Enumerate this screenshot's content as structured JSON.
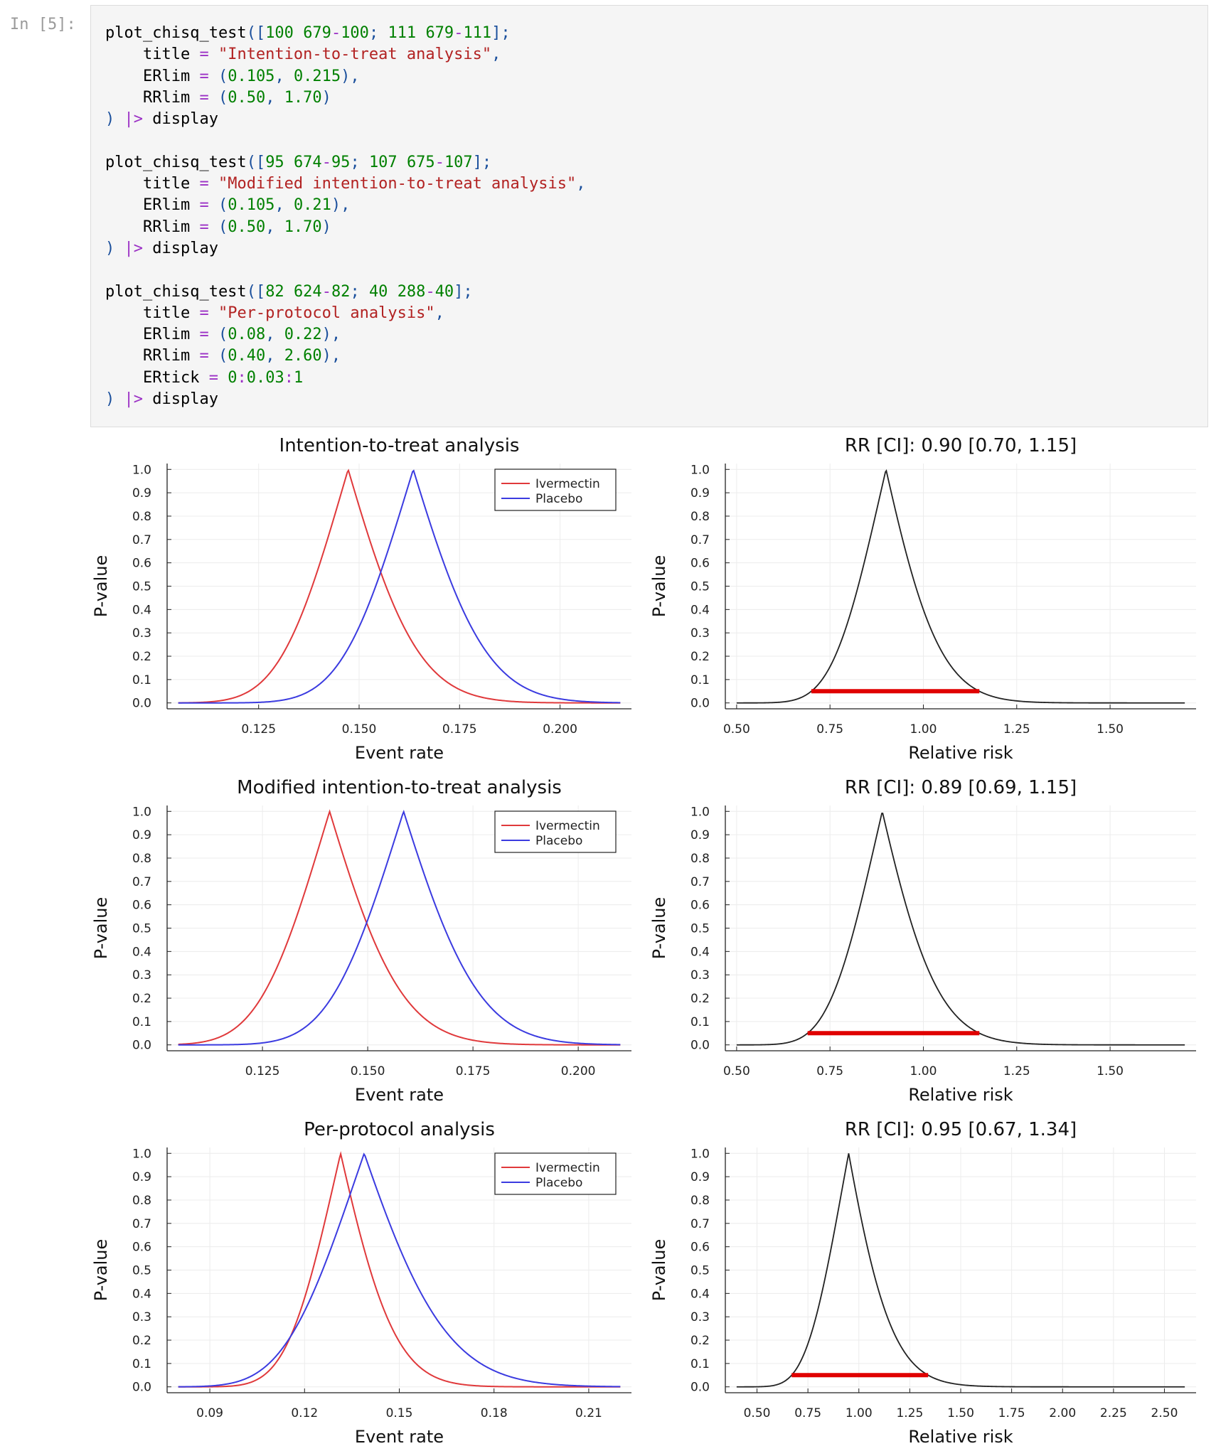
{
  "prompt": "In [5]:",
  "code_lines": [
    [
      [
        "id",
        "plot_chisq_test"
      ],
      [
        "pun",
        "(["
      ],
      [
        "num",
        "100"
      ],
      [
        "id",
        " "
      ],
      [
        "num",
        "679"
      ],
      [
        "op",
        "-"
      ],
      [
        "num",
        "100"
      ],
      [
        "pun",
        ";"
      ],
      [
        "id",
        " "
      ],
      [
        "num",
        "111"
      ],
      [
        "id",
        " "
      ],
      [
        "num",
        "679"
      ],
      [
        "op",
        "-"
      ],
      [
        "num",
        "111"
      ],
      [
        "pun",
        "];"
      ]
    ],
    [
      [
        "id",
        "    title "
      ],
      [
        "op",
        "="
      ],
      [
        "id",
        " "
      ],
      [
        "str",
        "\"Intention-to-treat analysis\""
      ],
      [
        "pun",
        ","
      ]
    ],
    [
      [
        "id",
        "    ERlim "
      ],
      [
        "op",
        "="
      ],
      [
        "id",
        " "
      ],
      [
        "pun",
        "("
      ],
      [
        "num",
        "0.105"
      ],
      [
        "pun",
        ","
      ],
      [
        "id",
        " "
      ],
      [
        "num",
        "0.215"
      ],
      [
        "pun",
        "),"
      ]
    ],
    [
      [
        "id",
        "    RRlim "
      ],
      [
        "op",
        "="
      ],
      [
        "id",
        " "
      ],
      [
        "pun",
        "("
      ],
      [
        "num",
        "0.50"
      ],
      [
        "pun",
        ","
      ],
      [
        "id",
        " "
      ],
      [
        "num",
        "1.70"
      ],
      [
        "pun",
        ")"
      ]
    ],
    [
      [
        "pun",
        ")"
      ],
      [
        "id",
        " "
      ],
      [
        "op",
        "|>"
      ],
      [
        "id",
        " display"
      ]
    ],
    [],
    [
      [
        "id",
        "plot_chisq_test"
      ],
      [
        "pun",
        "(["
      ],
      [
        "num",
        "95"
      ],
      [
        "id",
        " "
      ],
      [
        "num",
        "674"
      ],
      [
        "op",
        "-"
      ],
      [
        "num",
        "95"
      ],
      [
        "pun",
        ";"
      ],
      [
        "id",
        " "
      ],
      [
        "num",
        "107"
      ],
      [
        "id",
        " "
      ],
      [
        "num",
        "675"
      ],
      [
        "op",
        "-"
      ],
      [
        "num",
        "107"
      ],
      [
        "pun",
        "];"
      ]
    ],
    [
      [
        "id",
        "    title "
      ],
      [
        "op",
        "="
      ],
      [
        "id",
        " "
      ],
      [
        "str",
        "\"Modified intention-to-treat analysis\""
      ],
      [
        "pun",
        ","
      ]
    ],
    [
      [
        "id",
        "    ERlim "
      ],
      [
        "op",
        "="
      ],
      [
        "id",
        " "
      ],
      [
        "pun",
        "("
      ],
      [
        "num",
        "0.105"
      ],
      [
        "pun",
        ","
      ],
      [
        "id",
        " "
      ],
      [
        "num",
        "0.21"
      ],
      [
        "pun",
        "),"
      ]
    ],
    [
      [
        "id",
        "    RRlim "
      ],
      [
        "op",
        "="
      ],
      [
        "id",
        " "
      ],
      [
        "pun",
        "("
      ],
      [
        "num",
        "0.50"
      ],
      [
        "pun",
        ","
      ],
      [
        "id",
        " "
      ],
      [
        "num",
        "1.70"
      ],
      [
        "pun",
        ")"
      ]
    ],
    [
      [
        "pun",
        ")"
      ],
      [
        "id",
        " "
      ],
      [
        "op",
        "|>"
      ],
      [
        "id",
        " display"
      ]
    ],
    [],
    [
      [
        "id",
        "plot_chisq_test"
      ],
      [
        "pun",
        "(["
      ],
      [
        "num",
        "82"
      ],
      [
        "id",
        " "
      ],
      [
        "num",
        "624"
      ],
      [
        "op",
        "-"
      ],
      [
        "num",
        "82"
      ],
      [
        "pun",
        ";"
      ],
      [
        "id",
        " "
      ],
      [
        "num",
        "40"
      ],
      [
        "id",
        " "
      ],
      [
        "num",
        "288"
      ],
      [
        "op",
        "-"
      ],
      [
        "num",
        "40"
      ],
      [
        "pun",
        "];"
      ]
    ],
    [
      [
        "id",
        "    title "
      ],
      [
        "op",
        "="
      ],
      [
        "id",
        " "
      ],
      [
        "str",
        "\"Per-protocol analysis\""
      ],
      [
        "pun",
        ","
      ]
    ],
    [
      [
        "id",
        "    ERlim "
      ],
      [
        "op",
        "="
      ],
      [
        "id",
        " "
      ],
      [
        "pun",
        "("
      ],
      [
        "num",
        "0.08"
      ],
      [
        "pun",
        ","
      ],
      [
        "id",
        " "
      ],
      [
        "num",
        "0.22"
      ],
      [
        "pun",
        "),"
      ]
    ],
    [
      [
        "id",
        "    RRlim "
      ],
      [
        "op",
        "="
      ],
      [
        "id",
        " "
      ],
      [
        "pun",
        "("
      ],
      [
        "num",
        "0.40"
      ],
      [
        "pun",
        ","
      ],
      [
        "id",
        " "
      ],
      [
        "num",
        "2.60"
      ],
      [
        "pun",
        "),"
      ]
    ],
    [
      [
        "id",
        "    ERtick "
      ],
      [
        "op",
        "="
      ],
      [
        "id",
        " "
      ],
      [
        "num",
        "0"
      ],
      [
        "op",
        ":"
      ],
      [
        "num",
        "0.03"
      ],
      [
        "op",
        ":"
      ],
      [
        "num",
        "1"
      ]
    ],
    [
      [
        "pun",
        ")"
      ],
      [
        "id",
        " "
      ],
      [
        "op",
        "|>"
      ],
      [
        "id",
        " display"
      ]
    ]
  ],
  "colors": {
    "ivermectin": "#e0393b",
    "placebo": "#3b3be0",
    "rr_curve": "#222222",
    "ci_bar": "#e00000"
  },
  "chart_data": [
    {
      "type": "line",
      "title": "Intention-to-treat analysis",
      "xlabel": "Event rate",
      "ylabel": "P-value",
      "xlim": [
        0.105,
        0.215
      ],
      "ylim": [
        0,
        1
      ],
      "xticks": [
        0.125,
        0.15,
        0.175,
        0.2
      ],
      "xtick_labels": [
        "0.125",
        "0.150",
        "0.175",
        "0.200"
      ],
      "ytick_labels": [
        "0.0",
        "0.1",
        "0.2",
        "0.3",
        "0.4",
        "0.5",
        "0.6",
        "0.7",
        "0.8",
        "0.9",
        "1.0"
      ],
      "grid": true,
      "legend": "top-right",
      "series": [
        {
          "name": "Ivermectin",
          "events": 100,
          "total": 679,
          "peak": 0.1473,
          "color": "#e0393b"
        },
        {
          "name": "Placebo",
          "events": 111,
          "total": 679,
          "peak": 0.1635,
          "color": "#3b3be0"
        }
      ]
    },
    {
      "type": "line",
      "title": "RR [CI]: 0.90 [0.70, 1.15]",
      "xlabel": "Relative risk",
      "ylabel": "P-value",
      "xlim": [
        0.5,
        1.7
      ],
      "ylim": [
        0,
        1
      ],
      "xticks": [
        0.5,
        0.75,
        1.0,
        1.25,
        1.5
      ],
      "xtick_labels": [
        "0.50",
        "0.75",
        "1.00",
        "1.25",
        "1.50"
      ],
      "ytick_labels": [
        "0.0",
        "0.1",
        "0.2",
        "0.3",
        "0.4",
        "0.5",
        "0.6",
        "0.7",
        "0.8",
        "0.9",
        "1.0"
      ],
      "grid": true,
      "rr": {
        "estimate": 0.9,
        "ci": [
          0.7,
          1.15
        ],
        "ci_p": 0.05
      }
    },
    {
      "type": "line",
      "title": "Modified intention-to-treat analysis",
      "xlabel": "Event rate",
      "ylabel": "P-value",
      "xlim": [
        0.105,
        0.21
      ],
      "ylim": [
        0,
        1
      ],
      "xticks": [
        0.125,
        0.15,
        0.175,
        0.2
      ],
      "xtick_labels": [
        "0.125",
        "0.150",
        "0.175",
        "0.200"
      ],
      "ytick_labels": [
        "0.0",
        "0.1",
        "0.2",
        "0.3",
        "0.4",
        "0.5",
        "0.6",
        "0.7",
        "0.8",
        "0.9",
        "1.0"
      ],
      "grid": true,
      "legend": "top-right",
      "series": [
        {
          "name": "Ivermectin",
          "events": 95,
          "total": 674,
          "peak": 0.1409,
          "color": "#e0393b"
        },
        {
          "name": "Placebo",
          "events": 107,
          "total": 675,
          "peak": 0.1585,
          "color": "#3b3be0"
        }
      ]
    },
    {
      "type": "line",
      "title": "RR [CI]: 0.89 [0.69, 1.15]",
      "xlabel": "Relative risk",
      "ylabel": "P-value",
      "xlim": [
        0.5,
        1.7
      ],
      "ylim": [
        0,
        1
      ],
      "xticks": [
        0.5,
        0.75,
        1.0,
        1.25,
        1.5
      ],
      "xtick_labels": [
        "0.50",
        "0.75",
        "1.00",
        "1.25",
        "1.50"
      ],
      "ytick_labels": [
        "0.0",
        "0.1",
        "0.2",
        "0.3",
        "0.4",
        "0.5",
        "0.6",
        "0.7",
        "0.8",
        "0.9",
        "1.0"
      ],
      "grid": true,
      "rr": {
        "estimate": 0.89,
        "ci": [
          0.69,
          1.15
        ],
        "ci_p": 0.05
      }
    },
    {
      "type": "line",
      "title": "Per-protocol analysis",
      "xlabel": "Event rate",
      "ylabel": "P-value",
      "xlim": [
        0.08,
        0.22
      ],
      "ylim": [
        0,
        1
      ],
      "xticks": [
        0.09,
        0.12,
        0.15,
        0.18,
        0.21
      ],
      "xtick_labels": [
        "0.09",
        "0.12",
        "0.15",
        "0.18",
        "0.21"
      ],
      "ytick_labels": [
        "0.0",
        "0.1",
        "0.2",
        "0.3",
        "0.4",
        "0.5",
        "0.6",
        "0.7",
        "0.8",
        "0.9",
        "1.0"
      ],
      "grid": true,
      "legend": "top-right",
      "series": [
        {
          "name": "Ivermectin",
          "events": 82,
          "total": 624,
          "peak": 0.1314,
          "color": "#e0393b"
        },
        {
          "name": "Placebo",
          "events": 40,
          "total": 288,
          "peak": 0.1389,
          "color": "#3b3be0"
        }
      ]
    },
    {
      "type": "line",
      "title": "RR [CI]: 0.95 [0.67, 1.34]",
      "xlabel": "Relative risk",
      "ylabel": "P-value",
      "xlim": [
        0.4,
        2.6
      ],
      "ylim": [
        0,
        1
      ],
      "xticks": [
        0.5,
        0.75,
        1.0,
        1.25,
        1.5,
        1.75,
        2.0,
        2.25,
        2.5
      ],
      "xtick_labels": [
        "0.50",
        "0.75",
        "1.00",
        "1.25",
        "1.50",
        "1.75",
        "2.00",
        "2.25",
        "2.50"
      ],
      "ytick_labels": [
        "0.0",
        "0.1",
        "0.2",
        "0.3",
        "0.4",
        "0.5",
        "0.6",
        "0.7",
        "0.8",
        "0.9",
        "1.0"
      ],
      "grid": true,
      "rr": {
        "estimate": 0.95,
        "ci": [
          0.67,
          1.34
        ],
        "ci_p": 0.05
      }
    }
  ]
}
